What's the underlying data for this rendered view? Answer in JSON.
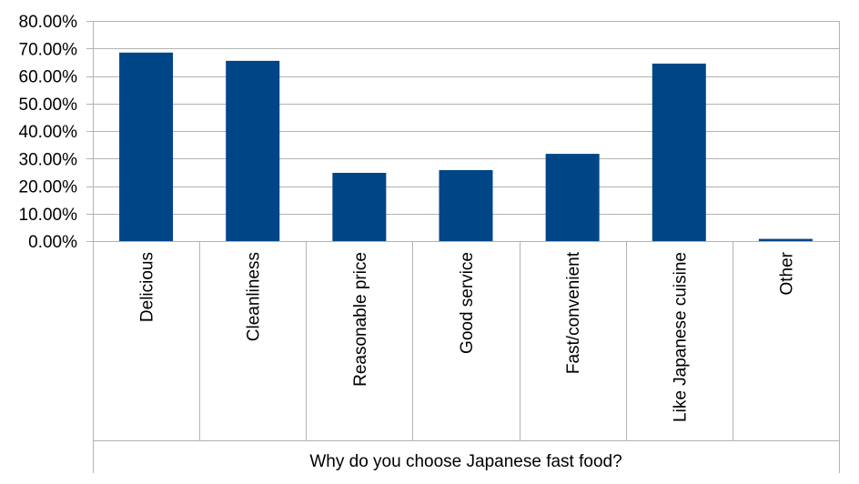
{
  "chart_data": {
    "type": "bar",
    "title": "",
    "xlabel": "Why do you choose Japanese fast food?",
    "ylabel": "",
    "categories": [
      "Delicious",
      "Cleanliness",
      "Reasonable price",
      "Good service",
      "Fast/convenient",
      "Like Japanese cuisine",
      "Other"
    ],
    "values": [
      68.5,
      65.5,
      24.8,
      25.8,
      31.7,
      64.5,
      0.8
    ],
    "ylim": [
      0,
      80
    ],
    "yticks": [
      0,
      10,
      20,
      30,
      40,
      50,
      60,
      70,
      80
    ],
    "ytick_labels": [
      "0.00%",
      "10.00%",
      "20.00%",
      "30.00%",
      "40.00%",
      "50.00%",
      "60.00%",
      "70.00%",
      "80.00%"
    ],
    "grid": true,
    "legend": "none",
    "bar_color": "#004586",
    "grid_color": "#b3b3b3"
  }
}
